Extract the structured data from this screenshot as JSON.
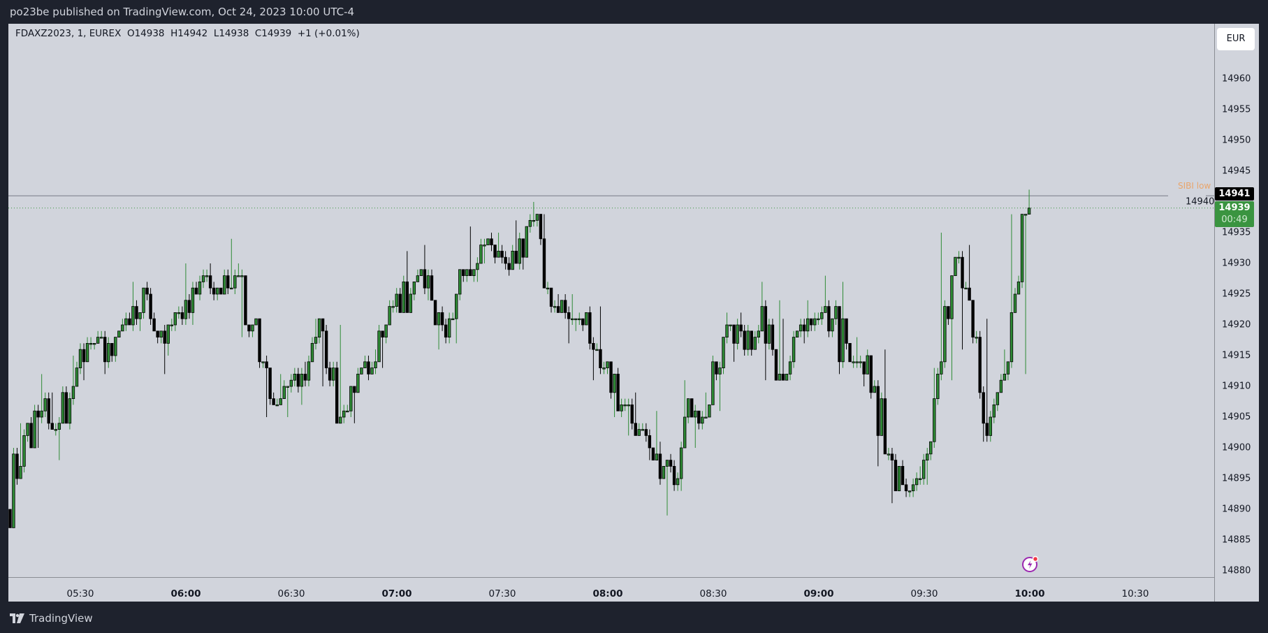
{
  "header": {
    "published": "po23be published on TradingView.com, Oct 24, 2023 10:00 UTC-4"
  },
  "legend": {
    "symbol": "FDAXZ2023, 1, EUREX",
    "open": "O14938",
    "high": "H14942",
    "low": "L14938",
    "close": "C14939",
    "change": "+1 (+0.01%)"
  },
  "currency_button": "EUR",
  "price_axis": {
    "ticks": [
      "14960",
      "14955",
      "14950",
      "14945",
      "14940",
      "14935",
      "14930",
      "14925",
      "14920",
      "14915",
      "14910",
      "14905",
      "14900",
      "14895",
      "14890",
      "14885",
      "14880"
    ]
  },
  "time_axis": {
    "ticks": [
      {
        "label": "05:30",
        "bold": false
      },
      {
        "label": "06:00",
        "bold": true
      },
      {
        "label": "06:30",
        "bold": false
      },
      {
        "label": "07:00",
        "bold": true
      },
      {
        "label": "07:30",
        "bold": false
      },
      {
        "label": "08:00",
        "bold": true
      },
      {
        "label": "08:30",
        "bold": false
      },
      {
        "label": "09:00",
        "bold": true
      },
      {
        "label": "09:30",
        "bold": false
      },
      {
        "label": "10:00",
        "bold": true
      },
      {
        "label": "10:30",
        "bold": false
      }
    ]
  },
  "sibi_line": {
    "label": "SIBI low",
    "price": "14941"
  },
  "last_price": {
    "price": "14939",
    "countdown": "00:49"
  },
  "colors": {
    "up": "#2e8b35",
    "down": "#000000",
    "background": "#d1d4dc",
    "frame": "#1e222d",
    "sibi_label": "#e9a56b",
    "last_price": "#3a9440"
  },
  "icons": {
    "bolt": "lightning-alert-icon",
    "logo": "tradingview-logo-icon"
  },
  "footer": {
    "brand": "TradingView"
  },
  "chart_data": {
    "type": "candlestick",
    "interval_shown": "1",
    "ylim": [
      14878,
      14968
    ],
    "candles_5m_approx": [
      [
        "05:10",
        14890,
        14904,
        14887,
        14902
      ],
      [
        "05:15",
        14902,
        14912,
        14900,
        14906
      ],
      [
        "05:20",
        14906,
        14909,
        14898,
        14904
      ],
      [
        "05:25",
        14904,
        14915,
        14903,
        14913
      ],
      [
        "05:30",
        14913,
        14918,
        14911,
        14917
      ],
      [
        "05:35",
        14917,
        14919,
        14912,
        14915
      ],
      [
        "05:40",
        14915,
        14922,
        14914,
        14920
      ],
      [
        "05:45",
        14920,
        14927,
        14919,
        14925
      ],
      [
        "05:50",
        14925,
        14926,
        14912,
        14917
      ],
      [
        "05:55",
        14917,
        14923,
        14915,
        14921
      ],
      [
        "06:00",
        14921,
        14930,
        14920,
        14927
      ],
      [
        "06:05",
        14927,
        14930,
        14924,
        14926
      ],
      [
        "06:10",
        14926,
        14934,
        14925,
        14928
      ],
      [
        "06:15",
        14928,
        14930,
        14918,
        14920
      ],
      [
        "06:20",
        14920,
        14921,
        14905,
        14908
      ],
      [
        "06:25",
        14908,
        14912,
        14905,
        14910
      ],
      [
        "06:30",
        14910,
        14914,
        14907,
        14911
      ],
      [
        "06:35",
        14911,
        14921,
        14910,
        14919
      ],
      [
        "06:40",
        14919,
        14920,
        14904,
        14905
      ],
      [
        "06:45",
        14905,
        14913,
        14904,
        14912
      ],
      [
        "06:50",
        14912,
        14916,
        14911,
        14914
      ],
      [
        "06:55",
        14914,
        14924,
        14913,
        14923
      ],
      [
        "07:00",
        14923,
        14932,
        14922,
        14925
      ],
      [
        "07:05",
        14925,
        14933,
        14924,
        14928
      ],
      [
        "07:10",
        14928,
        14929,
        14916,
        14918
      ],
      [
        "07:15",
        14918,
        14929,
        14917,
        14928
      ],
      [
        "07:20",
        14928,
        14936,
        14927,
        14933
      ],
      [
        "07:25",
        14933,
        14935,
        14930,
        14932
      ],
      [
        "07:30",
        14932,
        14937,
        14928,
        14930
      ],
      [
        "07:35",
        14930,
        14940,
        14929,
        14937
      ],
      [
        "07:40",
        14937,
        14938,
        14922,
        14923
      ],
      [
        "07:45",
        14923,
        14925,
        14917,
        14921
      ],
      [
        "07:50",
        14921,
        14925,
        14919,
        14922
      ],
      [
        "07:55",
        14922,
        14923,
        14911,
        14913
      ],
      [
        "08:00",
        14913,
        14914,
        14905,
        14907
      ],
      [
        "08:05",
        14907,
        14909,
        14902,
        14903
      ],
      [
        "08:10",
        14903,
        14906,
        14898,
        14899
      ],
      [
        "08:15",
        14899,
        14901,
        14889,
        14894
      ],
      [
        "08:20",
        14894,
        14911,
        14893,
        14905
      ],
      [
        "08:25",
        14905,
        14909,
        14900,
        14907
      ],
      [
        "08:30",
        14907,
        14922,
        14906,
        14920
      ],
      [
        "08:35",
        14920,
        14922,
        14914,
        14916
      ],
      [
        "08:40",
        14916,
        14927,
        14915,
        14923
      ],
      [
        "08:45",
        14923,
        14924,
        14911,
        14912
      ],
      [
        "08:50",
        14912,
        14921,
        14911,
        14919
      ],
      [
        "08:55",
        14919,
        14924,
        14917,
        14921
      ],
      [
        "09:00",
        14921,
        14928,
        14918,
        14921
      ],
      [
        "09:05",
        14921,
        14927,
        14912,
        14914
      ],
      [
        "09:10",
        14914,
        14918,
        14910,
        14915
      ],
      [
        "09:15",
        14915,
        14916,
        14897,
        14899
      ],
      [
        "09:20",
        14899,
        14900,
        14891,
        14894
      ],
      [
        "09:25",
        14894,
        14897,
        14892,
        14895
      ],
      [
        "09:30",
        14895,
        14913,
        14894,
        14912
      ],
      [
        "09:35",
        14912,
        14935,
        14911,
        14931
      ],
      [
        "09:40",
        14931,
        14933,
        14916,
        14918
      ],
      [
        "09:45",
        14918,
        14921,
        14901,
        14905
      ],
      [
        "09:50",
        14905,
        14916,
        14904,
        14914
      ],
      [
        "09:55",
        14914,
        14938,
        14912,
        14938
      ],
      [
        "10:00",
        14938,
        14942,
        14938,
        14939
      ]
    ]
  }
}
